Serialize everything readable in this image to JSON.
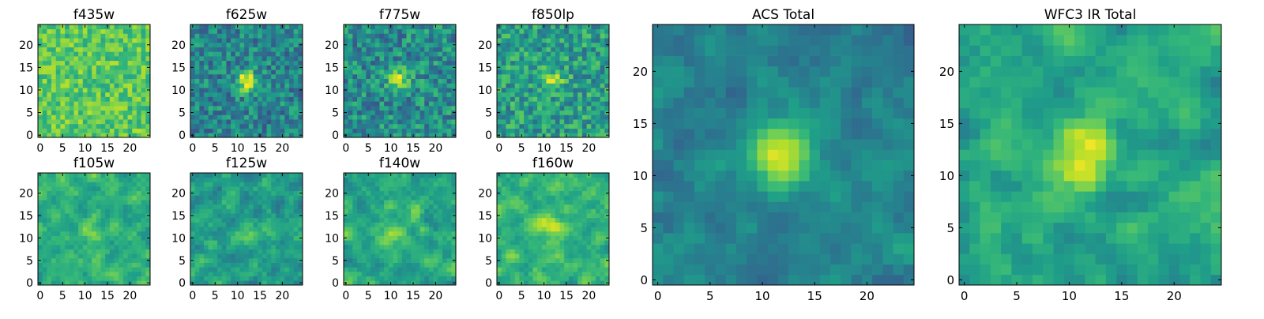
{
  "chart_data": [
    {
      "type": "heatmap",
      "title": "f435w",
      "colormap": "viridis",
      "grid_size": 25,
      "x_ticks": [
        0,
        5,
        10,
        15,
        20
      ],
      "y_ticks": [
        0,
        5,
        10,
        15,
        20
      ],
      "xlim": [
        -0.5,
        24.5
      ],
      "ylim": [
        -0.5,
        24.5
      ],
      "source_peak": null
    },
    {
      "type": "heatmap",
      "title": "f625w",
      "colormap": "viridis",
      "grid_size": 25,
      "x_ticks": [
        0,
        5,
        10,
        15,
        20
      ],
      "y_ticks": [
        0,
        5,
        10,
        15,
        20
      ],
      "xlim": [
        -0.5,
        24.5
      ],
      "ylim": [
        -0.5,
        24.5
      ],
      "source_peak": [
        12,
        12
      ]
    },
    {
      "type": "heatmap",
      "title": "f775w",
      "colormap": "viridis",
      "grid_size": 25,
      "x_ticks": [
        0,
        5,
        10,
        15,
        20
      ],
      "y_ticks": [
        0,
        5,
        10,
        15,
        20
      ],
      "xlim": [
        -0.5,
        24.5
      ],
      "ylim": [
        -0.5,
        24.5
      ],
      "source_peak": [
        12,
        12
      ]
    },
    {
      "type": "heatmap",
      "title": "f850lp",
      "colormap": "viridis",
      "grid_size": 25,
      "x_ticks": [
        0,
        5,
        10,
        15,
        20
      ],
      "y_ticks": [
        0,
        5,
        10,
        15,
        20
      ],
      "xlim": [
        -0.5,
        24.5
      ],
      "ylim": [
        -0.5,
        24.5
      ],
      "source_peak": [
        12,
        12
      ]
    },
    {
      "type": "heatmap",
      "title": "f105w",
      "colormap": "viridis",
      "grid_size": 25,
      "x_ticks": [
        0,
        5,
        10,
        15,
        20
      ],
      "y_ticks": [
        0,
        5,
        10,
        15,
        20
      ],
      "xlim": [
        -0.5,
        24.5
      ],
      "ylim": [
        -0.5,
        24.5
      ],
      "source_peak": [
        11,
        11
      ]
    },
    {
      "type": "heatmap",
      "title": "f125w",
      "colormap": "viridis",
      "grid_size": 25,
      "x_ticks": [
        0,
        5,
        10,
        15,
        20
      ],
      "y_ticks": [
        0,
        5,
        10,
        15,
        20
      ],
      "xlim": [
        -0.5,
        24.5
      ],
      "ylim": [
        -0.5,
        24.5
      ],
      "source_peak": [
        12,
        12
      ]
    },
    {
      "type": "heatmap",
      "title": "f140w",
      "colormap": "viridis",
      "grid_size": 25,
      "x_ticks": [
        0,
        5,
        10,
        15,
        20
      ],
      "y_ticks": [
        0,
        5,
        10,
        15,
        20
      ],
      "xlim": [
        -0.5,
        24.5
      ],
      "ylim": [
        -0.5,
        24.5
      ],
      "source_peak": [
        11,
        11
      ]
    },
    {
      "type": "heatmap",
      "title": "f160w",
      "colormap": "viridis",
      "grid_size": 25,
      "x_ticks": [
        0,
        5,
        10,
        15,
        20
      ],
      "y_ticks": [
        0,
        5,
        10,
        15,
        20
      ],
      "xlim": [
        -0.5,
        24.5
      ],
      "ylim": [
        -0.5,
        24.5
      ],
      "source_peak": [
        11,
        13
      ]
    },
    {
      "type": "heatmap",
      "title": "ACS Total",
      "colormap": "viridis",
      "grid_size": 25,
      "x_ticks": [
        0,
        5,
        10,
        15,
        20
      ],
      "y_ticks": [
        0,
        5,
        10,
        15,
        20
      ],
      "xlim": [
        -0.5,
        24.5
      ],
      "ylim": [
        -0.5,
        24.5
      ],
      "source_peak": [
        12,
        12
      ]
    },
    {
      "type": "heatmap",
      "title": "WFC3 IR Total",
      "colormap": "viridis",
      "grid_size": 25,
      "x_ticks": [
        0,
        5,
        10,
        15,
        20
      ],
      "y_ticks": [
        0,
        5,
        10,
        15,
        20
      ],
      "xlim": [
        -0.5,
        24.5
      ],
      "ylim": [
        -0.5,
        24.5
      ],
      "source_peak": [
        11,
        12
      ]
    }
  ]
}
